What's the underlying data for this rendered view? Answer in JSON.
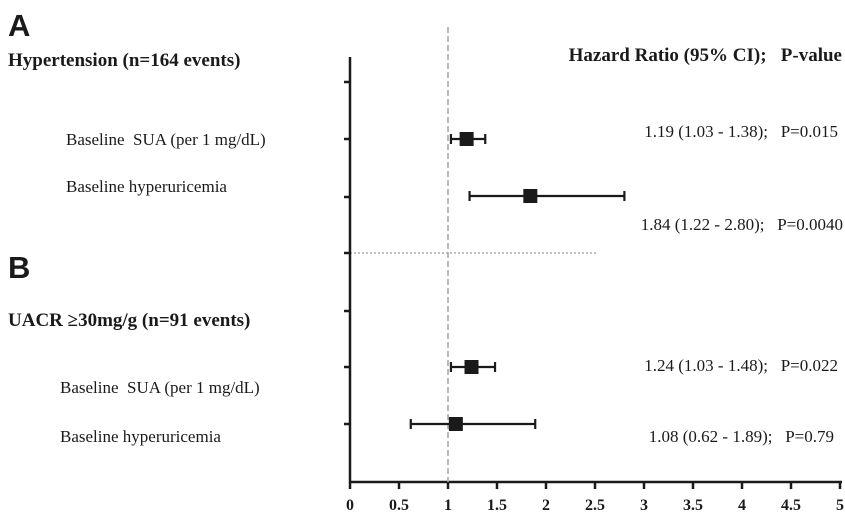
{
  "chart_data": {
    "type": "forest",
    "xlim": [
      0,
      5
    ],
    "x_ticks": [
      "0",
      "0.5",
      "1",
      "1.5",
      "2",
      "2.5",
      "3",
      "3.5",
      "4",
      "4.5",
      "5"
    ],
    "reference_line": 1,
    "header": "Hazard Ratio (95% CI);   P-value",
    "panels": [
      {
        "letter": "A",
        "title": "Hypertension (n=164 events)",
        "rows": [
          {
            "label": "Baseline  SUA (per 1 mg/dL)",
            "hr": 1.19,
            "lo": 1.03,
            "hi": 1.38,
            "text": "1.19 (1.03 - 1.38);   P=0.015"
          },
          {
            "label": "Baseline hyperuricemia",
            "hr": 1.84,
            "lo": 1.22,
            "hi": 2.8,
            "text": "1.84 (1.22 - 2.80);   P=0.0040"
          }
        ]
      },
      {
        "letter": "B",
        "title": "UACR ≥30mg/g (n=91 events)",
        "rows": [
          {
            "label": "Baseline  SUA (per 1 mg/dL)",
            "hr": 1.24,
            "lo": 1.03,
            "hi": 1.48,
            "text": "1.24 (1.03 - 1.48);   P=0.022"
          },
          {
            "label": "Baseline hyperuricemia",
            "hr": 1.08,
            "lo": 0.62,
            "hi": 1.89,
            "text": "1.08 (0.62 - 1.89);   P=0.79"
          }
        ]
      }
    ]
  }
}
